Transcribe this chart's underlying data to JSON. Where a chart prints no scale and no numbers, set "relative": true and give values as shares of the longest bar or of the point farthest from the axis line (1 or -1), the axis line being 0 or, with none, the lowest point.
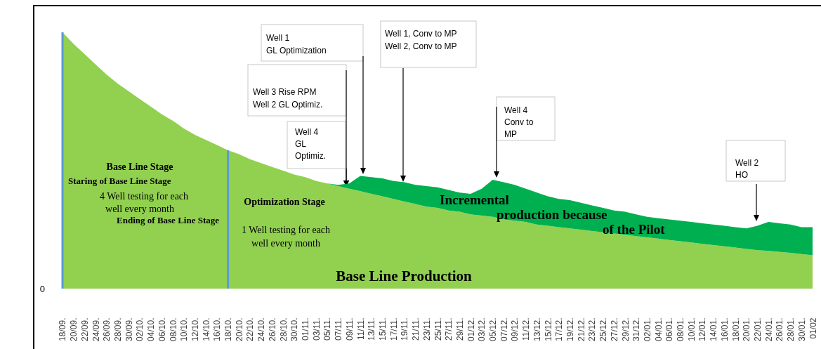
{
  "chart_data": {
    "type": "area",
    "stacked": true,
    "relative": true,
    "categories": [
      "18/09.",
      "20/09.",
      "22/09.",
      "24/09.",
      "26/09.",
      "28/09.",
      "30/09.",
      "02/10.",
      "04/10.",
      "06/10.",
      "08/10.",
      "10/10.",
      "12/10.",
      "14/10.",
      "16/10.",
      "18/10.",
      "20/10.",
      "22/10.",
      "24/10.",
      "26/10.",
      "28/10.",
      "30/10.",
      "01/11.",
      "03/11.",
      "05/11.",
      "07/11.",
      "09/11.",
      "11/11.",
      "13/11.",
      "15/11.",
      "17/11.",
      "19/11.",
      "21/11.",
      "23/11.",
      "25/11.",
      "27/11.",
      "29/11.",
      "01/12.",
      "03/12.",
      "05/12.",
      "07/12.",
      "09/12.",
      "11/12.",
      "13/12.",
      "15/12.",
      "17/12.",
      "19/12.",
      "21/12.",
      "23/12.",
      "25/12.",
      "27/12.",
      "29/12.",
      "31/12.",
      "02/01.",
      "04/01.",
      "06/01.",
      "08/01.",
      "10/01.",
      "12/01.",
      "14/01.",
      "16/01.",
      "18/01.",
      "20/01.",
      "22/01.",
      "24/01.",
      "26/01.",
      "28/01.",
      "30/01.",
      "01/02"
    ],
    "series": [
      {
        "name": "Base Line Production",
        "color": "#92d050",
        "values": [
          1.0,
          0.955,
          0.915,
          0.875,
          0.835,
          0.8,
          0.77,
          0.74,
          0.71,
          0.68,
          0.655,
          0.625,
          0.6,
          0.58,
          0.56,
          0.54,
          0.525,
          0.505,
          0.49,
          0.475,
          0.46,
          0.445,
          0.435,
          0.42,
          0.41,
          0.4,
          0.39,
          0.38,
          0.37,
          0.36,
          0.35,
          0.34,
          0.33,
          0.32,
          0.315,
          0.305,
          0.3,
          0.29,
          0.285,
          0.28,
          0.27,
          0.265,
          0.26,
          0.25,
          0.245,
          0.24,
          0.235,
          0.23,
          0.225,
          0.22,
          0.215,
          0.21,
          0.205,
          0.2,
          0.195,
          0.19,
          0.185,
          0.18,
          0.175,
          0.17,
          0.165,
          0.16,
          0.155,
          0.15,
          0.147,
          0.143,
          0.14,
          0.135,
          0.13
        ]
      },
      {
        "name": "Incremental\nproduction because\nof the Pilot",
        "color": "#00b050",
        "values": [
          0,
          0,
          0,
          0,
          0,
          0,
          0,
          0,
          0,
          0,
          0,
          0,
          0,
          0,
          0,
          0,
          0,
          0,
          0,
          0,
          0,
          0,
          0,
          0,
          0,
          0.005,
          0.02,
          0.06,
          0.065,
          0.07,
          0.07,
          0.075,
          0.075,
          0.08,
          0.08,
          0.08,
          0.075,
          0.08,
          0.105,
          0.145,
          0.145,
          0.14,
          0.13,
          0.125,
          0.115,
          0.11,
          0.11,
          0.105,
          0.1,
          0.095,
          0.09,
          0.09,
          0.085,
          0.08,
          0.08,
          0.08,
          0.08,
          0.08,
          0.08,
          0.08,
          0.08,
          0.08,
          0.08,
          0.095,
          0.113,
          0.112,
          0.11,
          0.105,
          0.11
        ]
      }
    ],
    "ref_lines": [
      {
        "axis": "x",
        "value": "18/09.",
        "label": "Staring of Base Line Stage",
        "color": "#5b9bd5"
      },
      {
        "axis": "x",
        "value": "18/10.",
        "label": "Ending of Base Line Stage",
        "color": "#5b9bd5"
      }
    ],
    "annotations": [
      "0",
      "Base Line Stage",
      "4 Well testing for each\nwell every month",
      "Optimization Stage",
      "1 Well testing for each\nwell every month",
      "Well 4\nGL\nOptimiz.",
      "Well 3 Rise RPM\nWell 2 GL Optimiz.",
      "Well 1\nGL Optimization",
      "Well 1, Conv to MP\nWell 2, Conv to MP",
      "Well 4\nConv to\nMP",
      "Well 2\nHO"
    ]
  }
}
